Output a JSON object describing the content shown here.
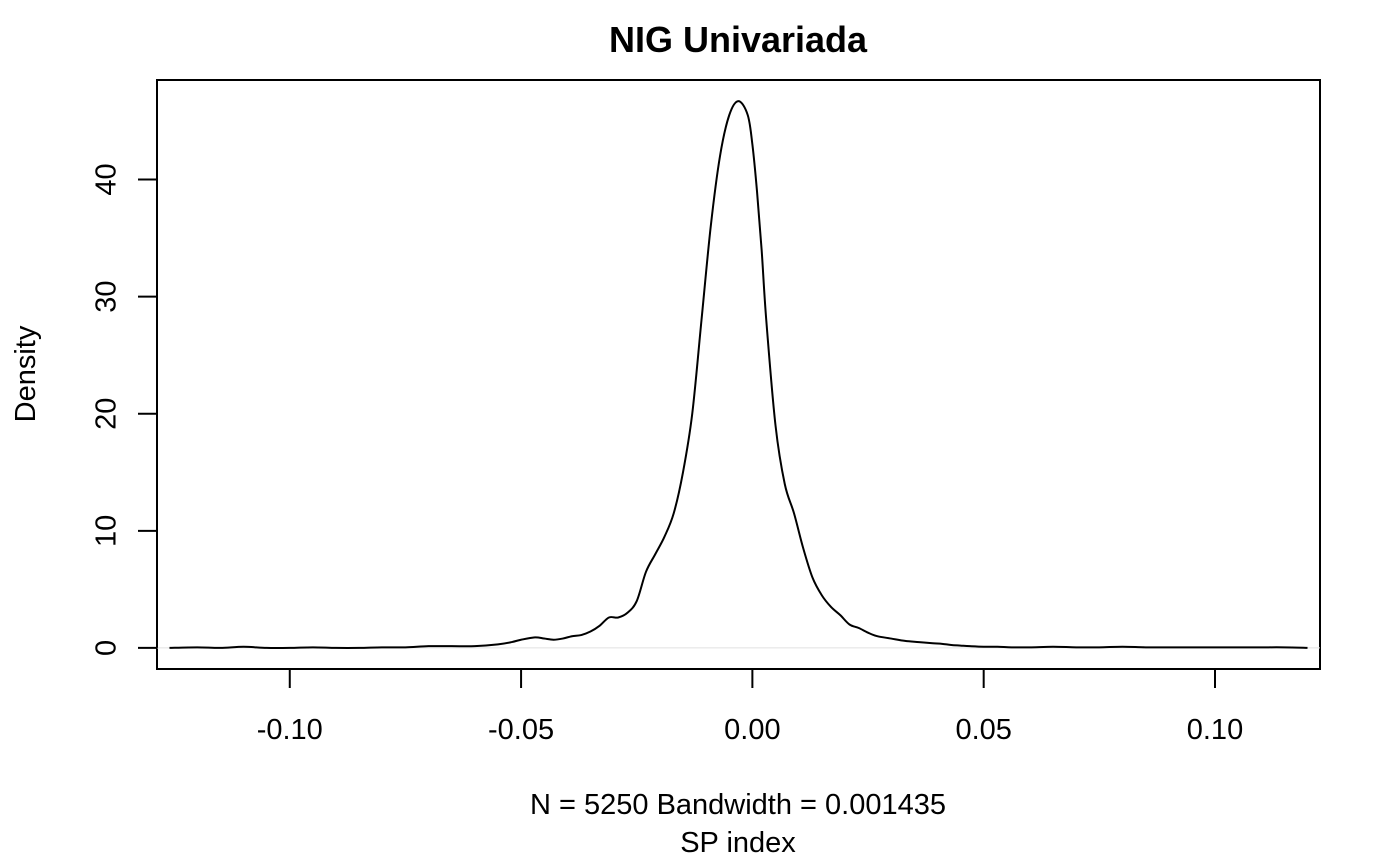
{
  "chart_data": {
    "type": "line",
    "title": "NIG Univariada",
    "xlabel": "SP index",
    "sublabel": "N = 5250   Bandwidth = 0.001435",
    "ylabel": "Density",
    "xlim": [
      -0.1287,
      0.1227
    ],
    "ylim": [
      -1.8,
      48.5
    ],
    "x_ticks": [
      -0.1,
      -0.05,
      0.0,
      0.05,
      0.1
    ],
    "x_tick_labels": [
      "-0.10",
      "-0.05",
      "0.00",
      "0.05",
      "0.10"
    ],
    "y_ticks": [
      0,
      10,
      20,
      30,
      40
    ],
    "y_tick_labels": [
      "0",
      "10",
      "20",
      "30",
      "40"
    ],
    "baseline": 0,
    "grid": false,
    "series": [
      {
        "x": [
          -0.126,
          -0.12,
          -0.115,
          -0.11,
          -0.105,
          -0.1,
          -0.095,
          -0.09,
          -0.085,
          -0.08,
          -0.075,
          -0.07,
          -0.065,
          -0.06,
          -0.055,
          -0.052,
          -0.05,
          -0.047,
          -0.045,
          -0.043,
          -0.041,
          -0.039,
          -0.037,
          -0.035,
          -0.033,
          -0.031,
          -0.029,
          -0.027,
          -0.025,
          -0.023,
          -0.021,
          -0.019,
          -0.017,
          -0.015,
          -0.013,
          -0.011,
          -0.009,
          -0.007,
          -0.005,
          -0.003,
          -0.001,
          0.0,
          0.001,
          0.002,
          0.003,
          0.005,
          0.007,
          0.009,
          0.011,
          0.013,
          0.015,
          0.017,
          0.019,
          0.021,
          0.023,
          0.025,
          0.027,
          0.03,
          0.033,
          0.036,
          0.039,
          0.041,
          0.043,
          0.045,
          0.047,
          0.05,
          0.053,
          0.056,
          0.06,
          0.065,
          0.07,
          0.075,
          0.08,
          0.085,
          0.09,
          0.095,
          0.1,
          0.105,
          0.11,
          0.115,
          0.12
        ],
        "values": [
          0.0,
          0.05,
          0.0,
          0.1,
          0.0,
          0.0,
          0.05,
          0.0,
          0.0,
          0.05,
          0.05,
          0.15,
          0.15,
          0.15,
          0.3,
          0.5,
          0.7,
          0.9,
          0.8,
          0.7,
          0.8,
          1.0,
          1.1,
          1.4,
          1.9,
          2.6,
          2.6,
          3.0,
          4.0,
          6.5,
          8.0,
          9.5,
          11.5,
          15.0,
          20.0,
          28.0,
          36.0,
          42.0,
          45.5,
          46.7,
          45.5,
          43.0,
          39.0,
          34.0,
          28.0,
          19.0,
          14.0,
          11.5,
          8.5,
          6.0,
          4.5,
          3.5,
          2.8,
          2.0,
          1.7,
          1.3,
          1.0,
          0.8,
          0.6,
          0.5,
          0.4,
          0.35,
          0.25,
          0.2,
          0.15,
          0.1,
          0.1,
          0.05,
          0.05,
          0.1,
          0.05,
          0.05,
          0.1,
          0.05,
          0.05,
          0.05,
          0.05,
          0.05,
          0.05,
          0.05,
          0.0
        ]
      }
    ]
  }
}
